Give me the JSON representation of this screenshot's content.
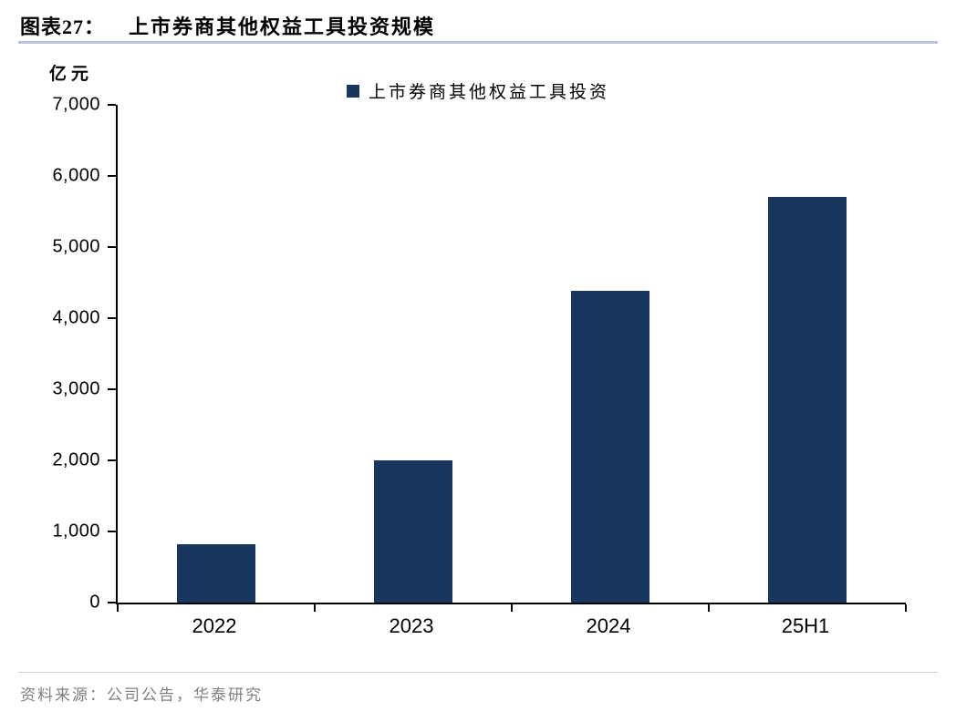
{
  "header": {
    "title_prefix": "图表27：",
    "title": "上市券商其他权益工具投资规模"
  },
  "chart_data": {
    "type": "bar",
    "title": "上市券商其他权益工具投资规模",
    "unit_label": "亿元",
    "legend": [
      "上市券商其他权益工具投资"
    ],
    "legend_position": "top-center",
    "categories": [
      "2022",
      "2023",
      "2024",
      "25H1"
    ],
    "values": [
      820,
      2000,
      4380,
      5700
    ],
    "xlabel": "",
    "ylabel": "亿元",
    "ylim": [
      0,
      7000
    ],
    "ytick_interval": 1000,
    "ytick_labels": [
      "0",
      "1,000",
      "2,000",
      "3,000",
      "4,000",
      "5,000",
      "6,000",
      "7,000"
    ],
    "grid": false,
    "bar_color": "#17375E"
  },
  "footer": {
    "source": "资料来源：公司公告，华泰研究"
  },
  "colors": {
    "bar": "#17375E",
    "title_underline": "#b9c5d9",
    "axis": "#000000",
    "source_text": "#7f7f7f",
    "footer_rule": "#d0d0d0"
  }
}
